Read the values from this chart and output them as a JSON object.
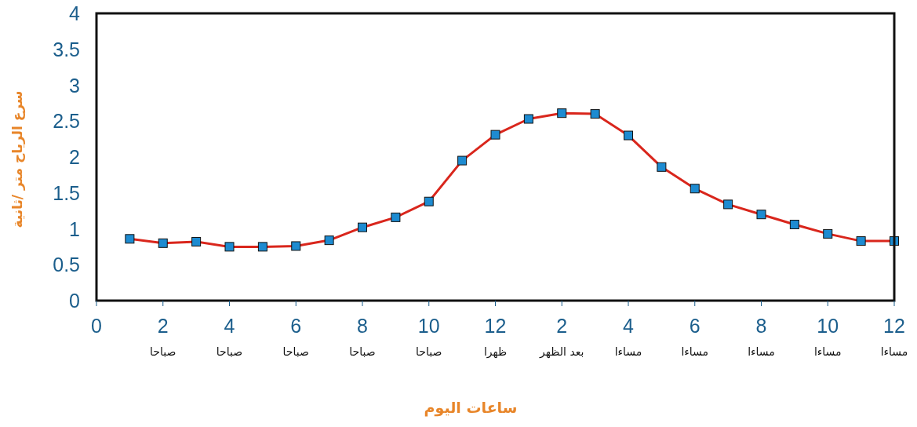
{
  "chart_data": {
    "type": "line",
    "xlabel": "ساعات اليوم",
    "ylabel": "سرع الرياح متر /ثانية",
    "categories": [
      "0",
      null,
      "2",
      null,
      "4",
      null,
      "6",
      null,
      "8",
      null,
      "10",
      null,
      "12",
      null,
      "2",
      null,
      "4",
      null,
      "6",
      null,
      "8",
      null,
      "10",
      null,
      "12"
    ],
    "series": [
      {
        "color": "#d9261c",
        "values": [
          null,
          0.86,
          0.8,
          0.82,
          0.75,
          0.75,
          0.76,
          0.84,
          1.02,
          1.16,
          1.38,
          1.95,
          2.31,
          2.53,
          2.61,
          2.6,
          2.3,
          1.86,
          1.56,
          1.34,
          1.2,
          1.06,
          0.93,
          0.83,
          0.83
        ]
      }
    ],
    "ylim": [
      0,
      4
    ],
    "yticks": [
      0,
      0.5,
      1,
      1.5,
      2,
      2.5,
      3,
      3.5,
      4
    ],
    "annotations": [
      "صباحا",
      "صباحا",
      "صباحا",
      "صباحا",
      "صباحا",
      "ظهرا",
      "بعد الظهر",
      "مساءا",
      "مساءا",
      "مساءا",
      "مساءا",
      "مساءا"
    ],
    "marker": "square",
    "line_style": "solid"
  }
}
